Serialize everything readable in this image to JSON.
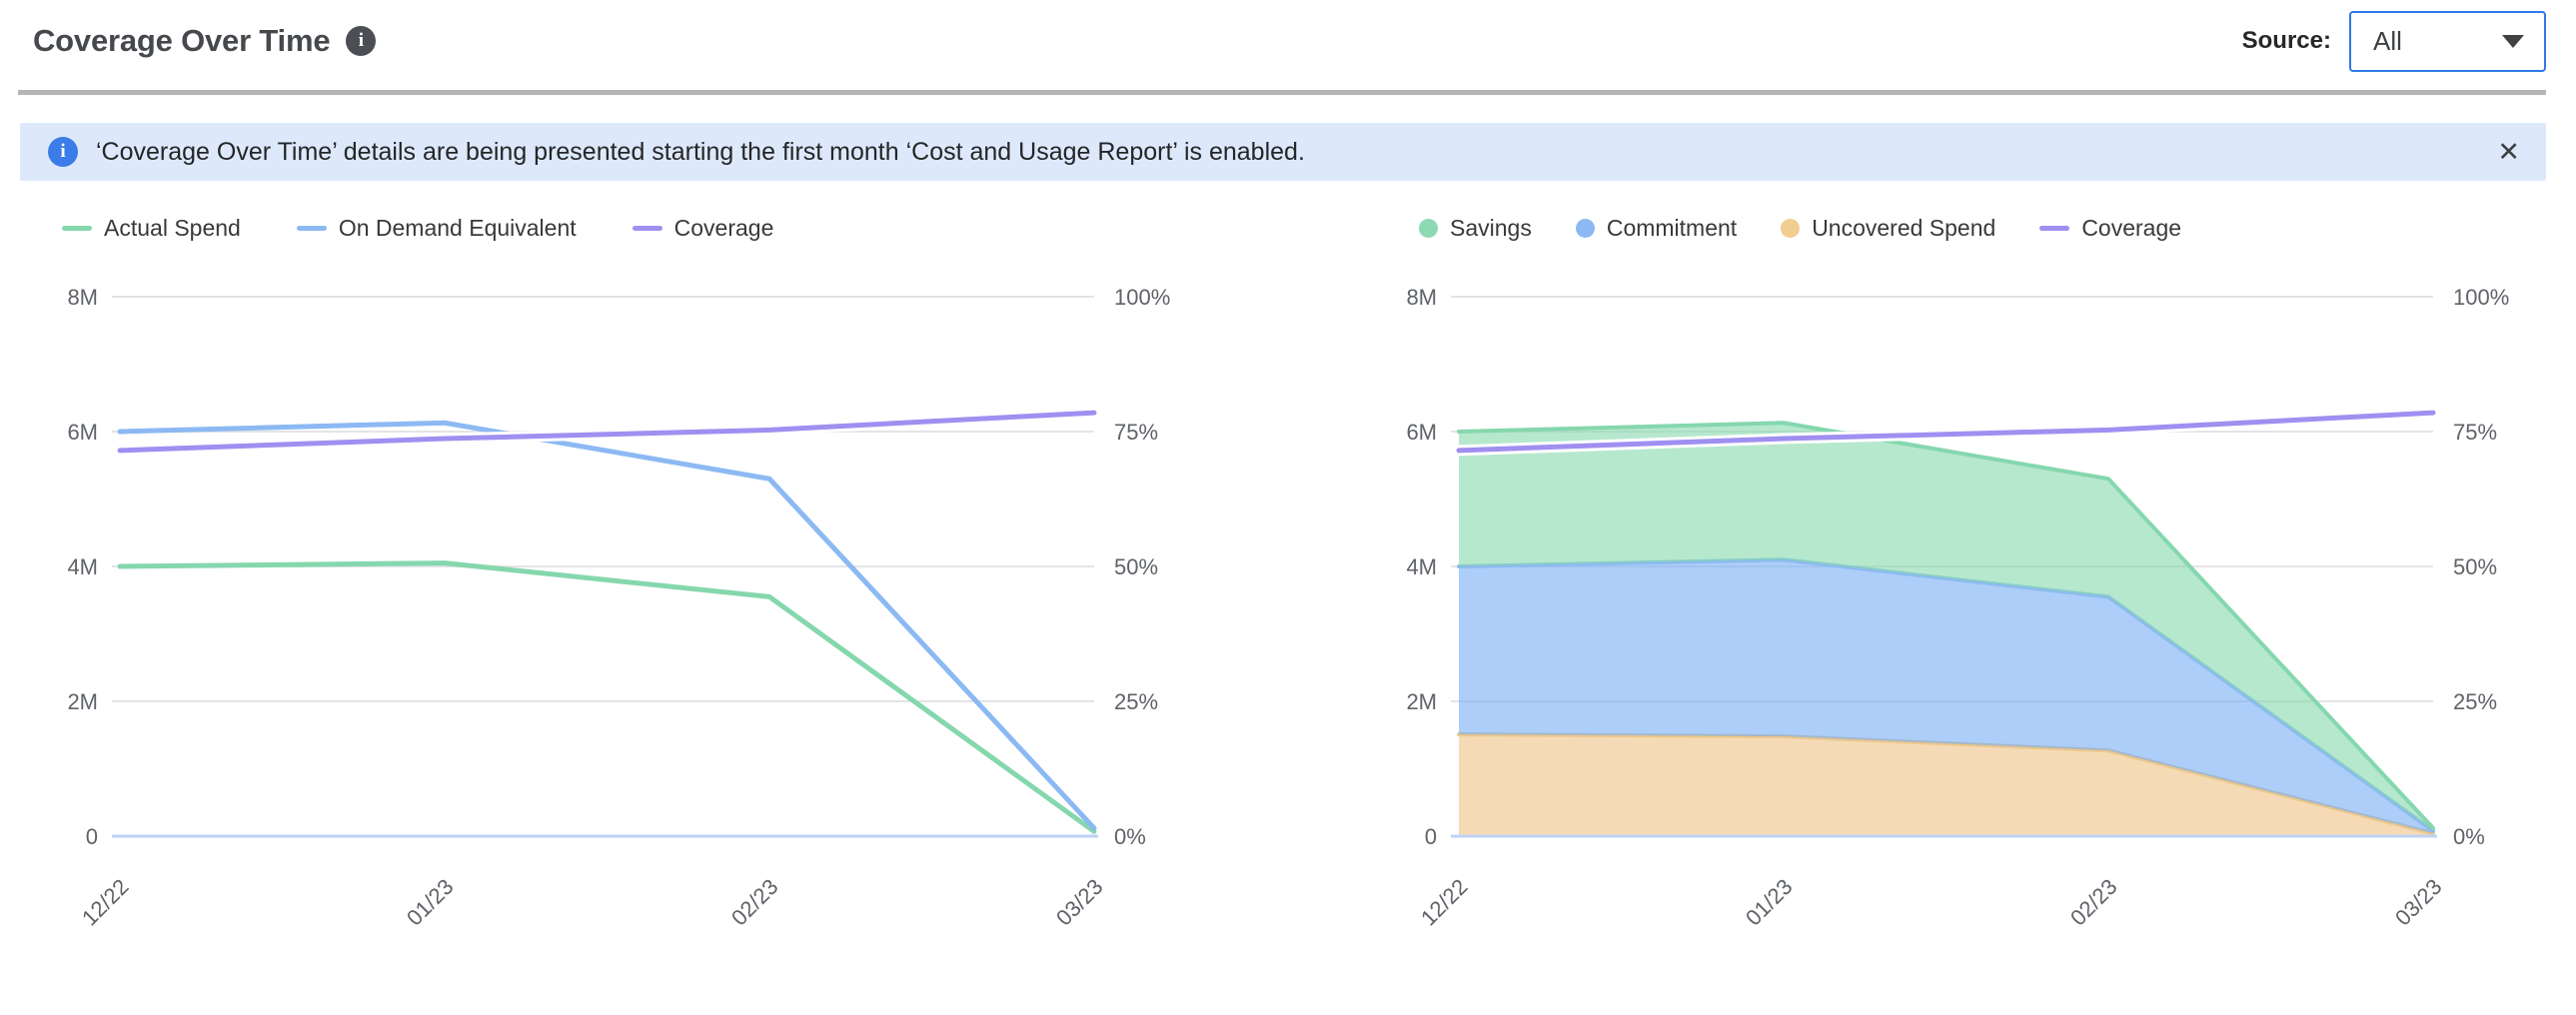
{
  "header": {
    "title": "Coverage Over Time",
    "title_info_glyph": "i",
    "source_label": "Source:",
    "source_value": "All"
  },
  "banner": {
    "icon_glyph": "i",
    "text": "‘Coverage Over Time’ details are being presented starting the first month ‘Cost and Usage Report’ is enabled.",
    "close_glyph": "✕"
  },
  "colors": {
    "accent_blue": "#2e7ae6",
    "banner_bg": "#dde9fb",
    "banner_icon": "#3b7ce8",
    "grid": "#e4e4e7",
    "zero_line": "#bfd1f5",
    "axis_text": "#5f6368",
    "green_line": "#85d7ad",
    "green_fill": "#86d8ab",
    "blue_line": "#8cb9f3",
    "blue_fill": "#74aef3",
    "orange_line": "#edc78c",
    "orange_fill": "#eec383",
    "purple_line": "#a08ff0"
  },
  "chart_data": [
    {
      "type": "line",
      "title": "",
      "categories": [
        "12/22",
        "01/23",
        "02/23",
        "03/23"
      ],
      "left_axis": {
        "ticks": [
          "8M",
          "6M",
          "4M",
          "2M",
          "0"
        ],
        "max_millions": 8
      },
      "right_axis": {
        "ticks": [
          "100%",
          "75%",
          "50%",
          "25%",
          "0%"
        ],
        "max_percent": 100
      },
      "grid": true,
      "legend_position": "top",
      "legend": [
        {
          "label": "Actual Spend",
          "swatch": "line",
          "color": "#85d7ad"
        },
        {
          "label": "On Demand Equivalent",
          "swatch": "line",
          "color": "#8cb9f3"
        },
        {
          "label": "Coverage",
          "swatch": "line",
          "color": "#a08ff0"
        }
      ],
      "series": [
        {
          "name": "Actual Spend",
          "kind": "line",
          "axis": "left",
          "color": "#85d7ad",
          "values_millions": [
            4.0,
            4.05,
            3.55,
            0.07
          ]
        },
        {
          "name": "On Demand Equivalent",
          "kind": "line",
          "axis": "left",
          "color": "#8cb9f3",
          "values_millions": [
            6.0,
            6.13,
            5.3,
            0.12
          ]
        },
        {
          "name": "Coverage",
          "kind": "line",
          "axis": "right",
          "color": "#a08ff0",
          "halo": true,
          "values_percent": [
            71.5,
            73.7,
            75.3,
            78.5
          ]
        }
      ]
    },
    {
      "type": "area",
      "title": "",
      "categories": [
        "12/22",
        "01/23",
        "02/23",
        "03/23"
      ],
      "left_axis": {
        "ticks": [
          "8M",
          "6M",
          "4M",
          "2M",
          "0"
        ],
        "max_millions": 8
      },
      "right_axis": {
        "ticks": [
          "100%",
          "75%",
          "50%",
          "25%",
          "0%"
        ],
        "max_percent": 100
      },
      "grid": true,
      "legend_position": "top",
      "legend": [
        {
          "label": "Savings",
          "swatch": "circle",
          "color": "#8ed9b4"
        },
        {
          "label": "Commitment",
          "swatch": "circle",
          "color": "#8cb9f3"
        },
        {
          "label": "Uncovered Spend",
          "swatch": "circle",
          "color": "#f0cd90"
        },
        {
          "label": "Coverage",
          "swatch": "line",
          "color": "#a08ff0"
        }
      ],
      "series": [
        {
          "name": "Uncovered Spend",
          "kind": "stacked-area",
          "axis": "left",
          "color": "#edc78c",
          "fill": "#eec383",
          "values_millions": [
            1.51,
            1.48,
            1.27,
            0.04
          ]
        },
        {
          "name": "Commitment",
          "kind": "stacked-area",
          "axis": "left",
          "color": "#8cb9f3",
          "fill": "#74aef3",
          "values_millions": [
            2.49,
            2.62,
            2.28,
            0.04
          ]
        },
        {
          "name": "Savings",
          "kind": "stacked-area",
          "axis": "left",
          "color": "#85d7ad",
          "fill": "#86d8ab",
          "values_millions": [
            2.0,
            2.03,
            1.75,
            0.04
          ]
        },
        {
          "name": "Coverage",
          "kind": "line",
          "axis": "right",
          "color": "#a08ff0",
          "halo": true,
          "values_percent": [
            71.5,
            73.7,
            75.3,
            78.5
          ]
        }
      ]
    }
  ]
}
